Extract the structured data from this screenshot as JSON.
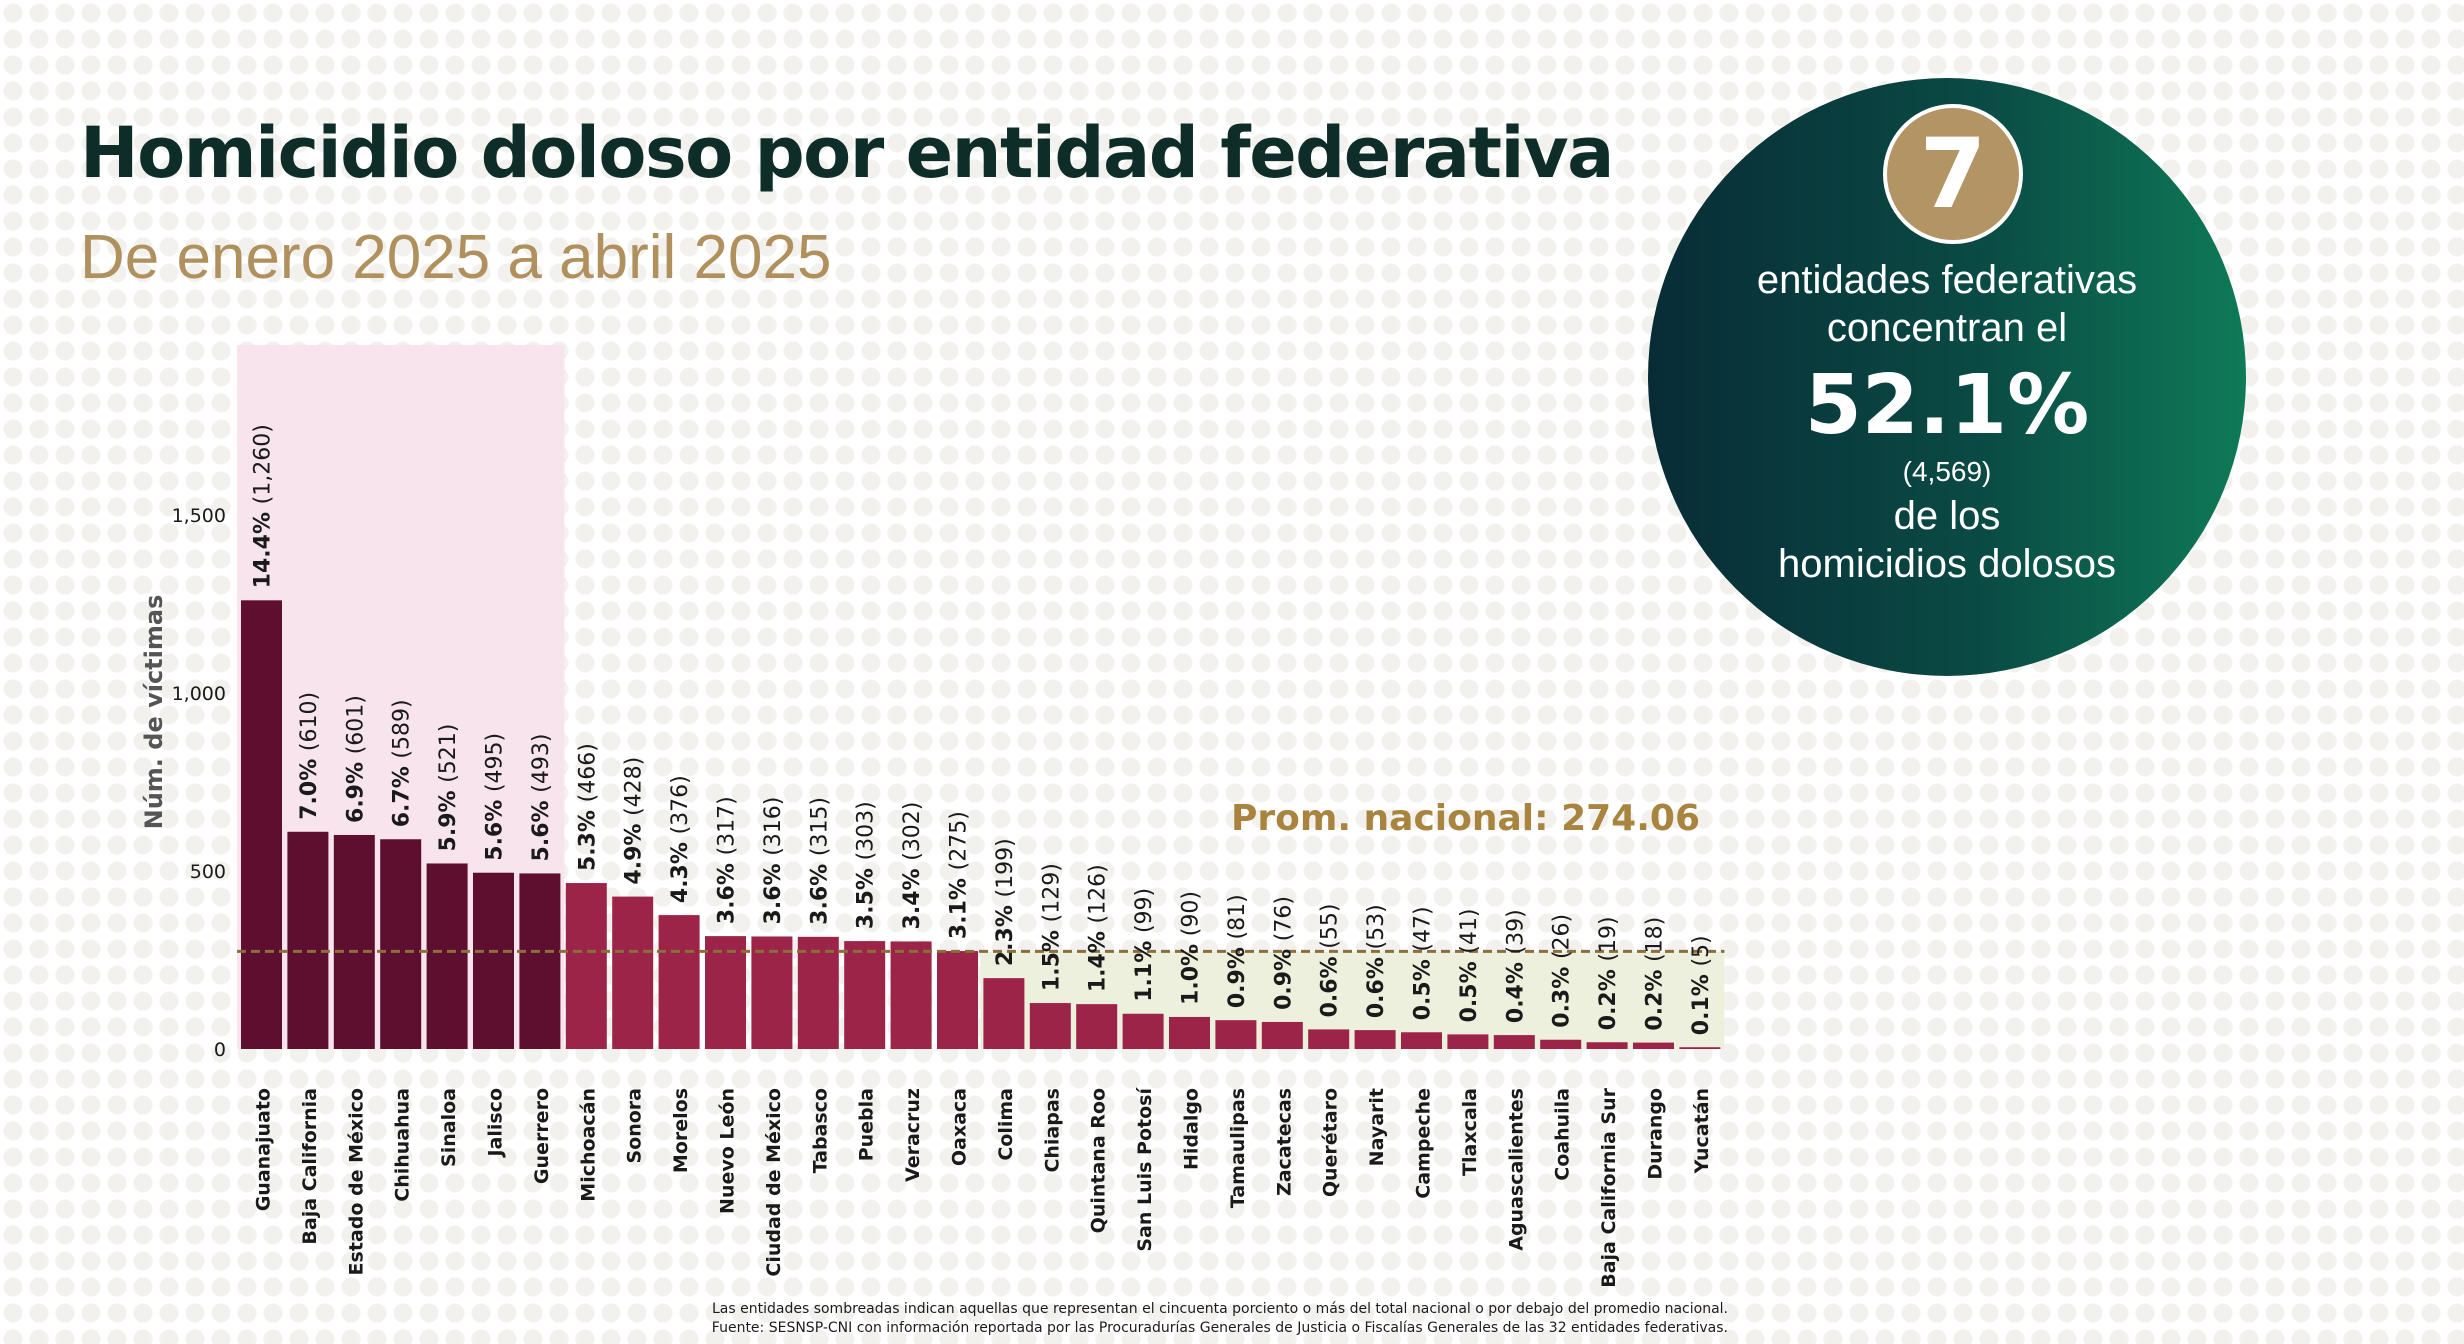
{
  "header": {
    "title": "Homicidio doloso por entidad federativa",
    "subtitle": "De enero 2025 a abril 2025"
  },
  "summary": {
    "count": "7",
    "line1": "entidades federativas",
    "line2": "concentran el",
    "percent": "52.1%",
    "total": "(4,569)",
    "line3": "de los",
    "line4": "homicidios dolosos"
  },
  "chart_data": {
    "type": "bar",
    "ylabel": "Núm. de víctimas",
    "xlabel": "",
    "ylim": [
      0,
      1980
    ],
    "yticks": [
      0,
      500,
      1000,
      1500
    ],
    "ytick_labels": [
      "0",
      "500",
      "1,000",
      "1,500"
    ],
    "categories": [
      "Guanajuato",
      "Baja California",
      "Estado de México",
      "Chihuahua",
      "Sinaloa",
      "Jalisco",
      "Guerrero",
      "Michoacán",
      "Sonora",
      "Morelos",
      "Nuevo León",
      "Ciudad de México",
      "Tabasco",
      "Puebla",
      "Veracruz",
      "Oaxaca",
      "Colima",
      "Chiapas",
      "Quintana Roo",
      "San Luis Potosí",
      "Hidalgo",
      "Tamaulipas",
      "Zacatecas",
      "Querétaro",
      "Nayarit",
      "Campeche",
      "Tlaxcala",
      "Aguascalientes",
      "Coahuila",
      "Baja California Sur",
      "Durango",
      "Yucatán"
    ],
    "values": [
      1260,
      610,
      601,
      589,
      521,
      495,
      493,
      466,
      428,
      376,
      317,
      316,
      315,
      303,
      302,
      275,
      199,
      129,
      126,
      99,
      90,
      81,
      76,
      55,
      53,
      47,
      41,
      39,
      26,
      19,
      18,
      5
    ],
    "percent_labels": [
      "14.4%",
      "7.0%",
      "6.9%",
      "6.7%",
      "5.9%",
      "5.6%",
      "5.6%",
      "5.3%",
      "4.9%",
      "4.3%",
      "3.6%",
      "3.6%",
      "3.6%",
      "3.5%",
      "3.4%",
      "3.1%",
      "2.3%",
      "1.5%",
      "1.4%",
      "1.1%",
      "1.0%",
      "0.9%",
      "0.9%",
      "0.6%",
      "0.6%",
      "0.5%",
      "0.5%",
      "0.4%",
      "0.3%",
      "0.2%",
      "0.2%",
      "0.1%"
    ],
    "count_labels": [
      "(1,260)",
      "(610)",
      "(601)",
      "(589)",
      "(521)",
      "(495)",
      "(493)",
      "(466)",
      "(428)",
      "(376)",
      "(317)",
      "(316)",
      "(315)",
      "(303)",
      "(302)",
      "(275)",
      "(199)",
      "(129)",
      "(126)",
      "(99)",
      "(90)",
      "(81)",
      "(76)",
      "(55)",
      "(53)",
      "(47)",
      "(41)",
      "(39)",
      "(26)",
      "(19)",
      "(18)",
      "(5)"
    ],
    "top_group_count": 7,
    "average": 274.06,
    "average_label": "Prom. nacional: 274.06",
    "colors": {
      "top_bars": "#5e0f2f",
      "other_bars": "#9b2448",
      "top_shade": "#f7e4ec",
      "below_avg_shade": "#eef0de",
      "average_line": "#8b6d3e",
      "average_label": "#a8843f",
      "axis_text": "#1a1a1a",
      "ylabel": "#555555"
    }
  },
  "footnote": {
    "line1": "Las entidades sombreadas indican aquellas que representan el cincuenta porciento o más del total nacional o por debajo del promedio nacional.",
    "line2": "Fuente: SESNSP-CNI con información reportada por las Procuradurías Generales de Justicia o Fiscalías Generales de las 32 entidades federativas."
  }
}
